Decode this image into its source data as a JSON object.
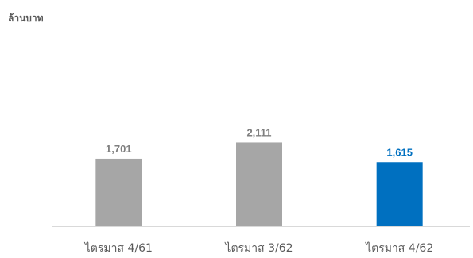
{
  "chart_data": {
    "type": "bar",
    "unit_label": "ล้านบาท",
    "categories": [
      "ไตรมาส 4/61",
      "ไตรมาส 3/62",
      "ไตรมาส 4/62"
    ],
    "values": [
      1701,
      2111,
      1615
    ],
    "value_labels": [
      "1,701",
      "2,111",
      "1,615"
    ],
    "colors": [
      "#A6A6A6",
      "#A6A6A6",
      "#0070C0"
    ],
    "label_colors": [
      "#7F7F7F",
      "#7F7F7F",
      "#0070C0"
    ],
    "axis_color": "#D9D9D9",
    "category_label_color": "#595959",
    "ylim": [
      0,
      5000
    ],
    "grid": false,
    "legend": "none"
  }
}
